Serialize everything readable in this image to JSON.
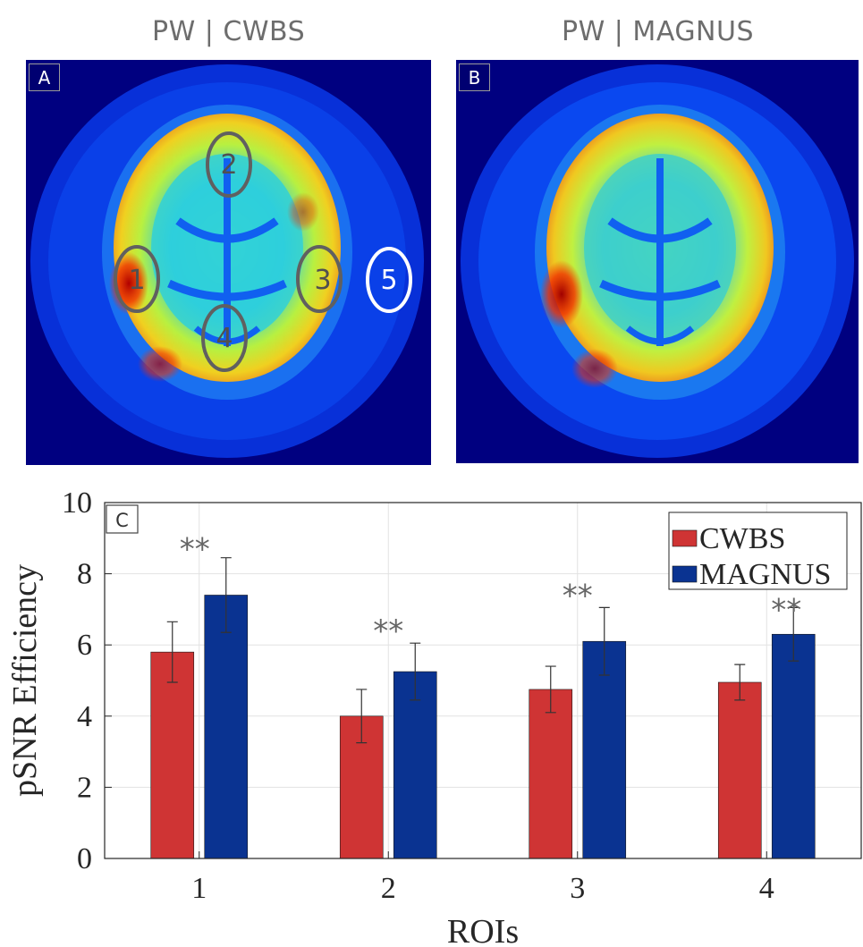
{
  "panels": [
    {
      "letter": "A",
      "title": "PW | CWBS"
    },
    {
      "letter": "B",
      "title": "PW | MAGNUS"
    }
  ],
  "roi_labels": [
    "1",
    "2",
    "3",
    "4",
    "5"
  ],
  "colors": {
    "cwbs": "#cf3434",
    "magnus": "#0a3391",
    "scan_background": "#000080",
    "roi_outline": "#606060"
  },
  "chart_data": {
    "type": "bar",
    "panel_letter": "C",
    "xlabel": "ROIs",
    "ylabel": "pSNR Efficiency",
    "ylim": [
      0,
      10
    ],
    "yticks": [
      0,
      2,
      4,
      6,
      8,
      10
    ],
    "categories": [
      "1",
      "2",
      "3",
      "4"
    ],
    "grid": true,
    "legend_position": "top-right",
    "series": [
      {
        "name": "CWBS",
        "values": [
          5.8,
          4.0,
          4.75,
          4.95
        ],
        "errors": [
          0.85,
          0.75,
          0.65,
          0.5
        ]
      },
      {
        "name": "MAGNUS",
        "values": [
          7.4,
          5.25,
          6.1,
          6.3
        ],
        "errors": [
          1.05,
          0.8,
          0.95,
          0.75
        ]
      }
    ],
    "annotations": [
      {
        "category": "1",
        "text": "**"
      },
      {
        "category": "2",
        "text": "**"
      },
      {
        "category": "3",
        "text": "**"
      },
      {
        "category": "4",
        "text": "**"
      }
    ]
  }
}
